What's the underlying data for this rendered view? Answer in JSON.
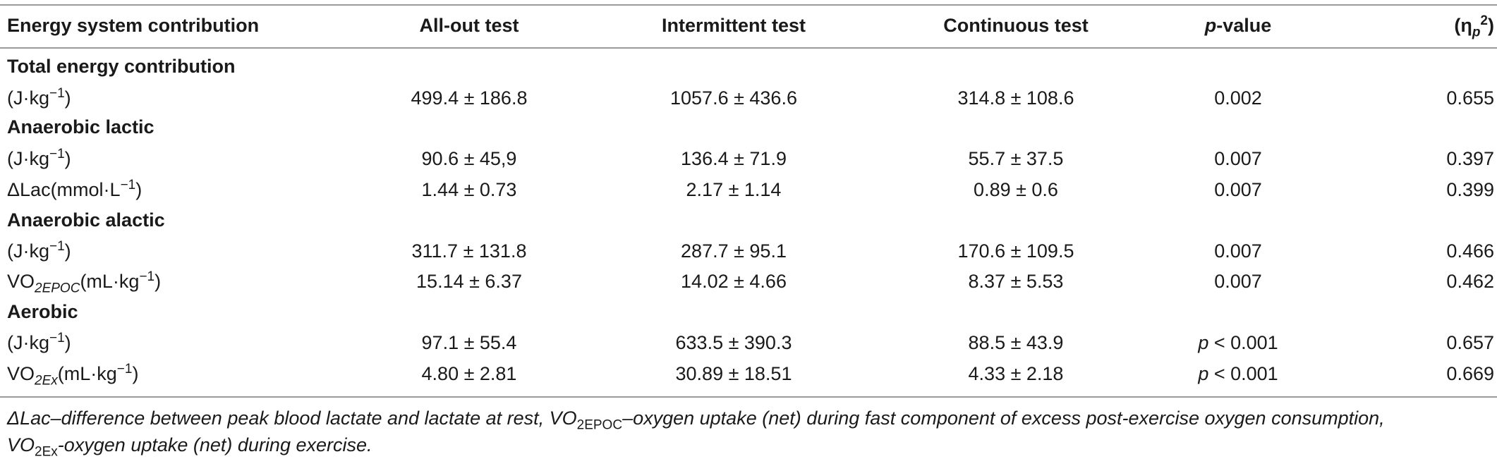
{
  "header": {
    "col0": "Energy system contribution",
    "col1": "All-out test",
    "col2": "Intermittent test",
    "col3": "Continuous test",
    "col4_italic": "p",
    "col4_rest": "-value",
    "col5_prefix": "(η",
    "col5_sub": "p",
    "col5_sup": "2",
    "col5_suffix": ")"
  },
  "sections": {
    "total": "Total energy contribution",
    "lactic": "Anaerobic lactic",
    "alactic": "Anaerobic alactic",
    "aerobic": "Aerobic"
  },
  "labels": {
    "jkg_prefix": "(J·kg",
    "jkg_sup": "−1",
    "jkg_suffix": ")",
    "lac_prefix": "ΔLac(mmol·L",
    "lac_sup": "−1",
    "lac_suffix": ")",
    "vo2_prefix": "VO",
    "vo2_sub_epoc": "2EPOC",
    "vo2_sub_ex": "2Ex",
    "ml_prefix": "(mL·kg",
    "ml_sup": "−1",
    "ml_suffix": ")"
  },
  "rows": {
    "total_j": [
      "499.4 ± 186.8",
      "1057.6 ± 436.6",
      "314.8 ± 108.6",
      "0.002",
      "0.655"
    ],
    "lactic_j": [
      "90.6 ± 45,9",
      "136.4 ± 71.9",
      "55.7 ± 37.5",
      "0.007",
      "0.397"
    ],
    "lactic_lac": [
      "1.44 ± 0.73",
      "2.17 ± 1.14",
      "0.89 ± 0.6",
      "0.007",
      "0.399"
    ],
    "alactic_j": [
      "311.7 ± 131.8",
      "287.7 ± 95.1",
      "170.6 ± 109.5",
      "0.007",
      "0.466"
    ],
    "alactic_vo2": [
      "15.14 ± 6.37",
      "14.02 ± 4.66",
      "8.37 ± 5.53",
      "0.007",
      "0.462"
    ],
    "aerobic_j": [
      "97.1 ± 55.4",
      "633.5 ± 390.3",
      "88.5 ± 43.9",
      "p < 0.001",
      "0.657"
    ],
    "aerobic_vo2": [
      "4.80 ± 2.81",
      "30.89 ± 18.51",
      "4.33 ± 2.18",
      "p < 0.001",
      "0.669"
    ]
  },
  "footnote": {
    "line1": "ΔLac–difference between peak blood lactate and lactate at rest, VO",
    "sub1": "2EPOC",
    "line1_rest": "–oxygen uptake (net) during fast component of excess post-exercise oxygen consumption,",
    "line2_prefix": "VO",
    "sub2": "2Ex",
    "line2_rest": "-oxygen uptake (net) during exercise."
  }
}
